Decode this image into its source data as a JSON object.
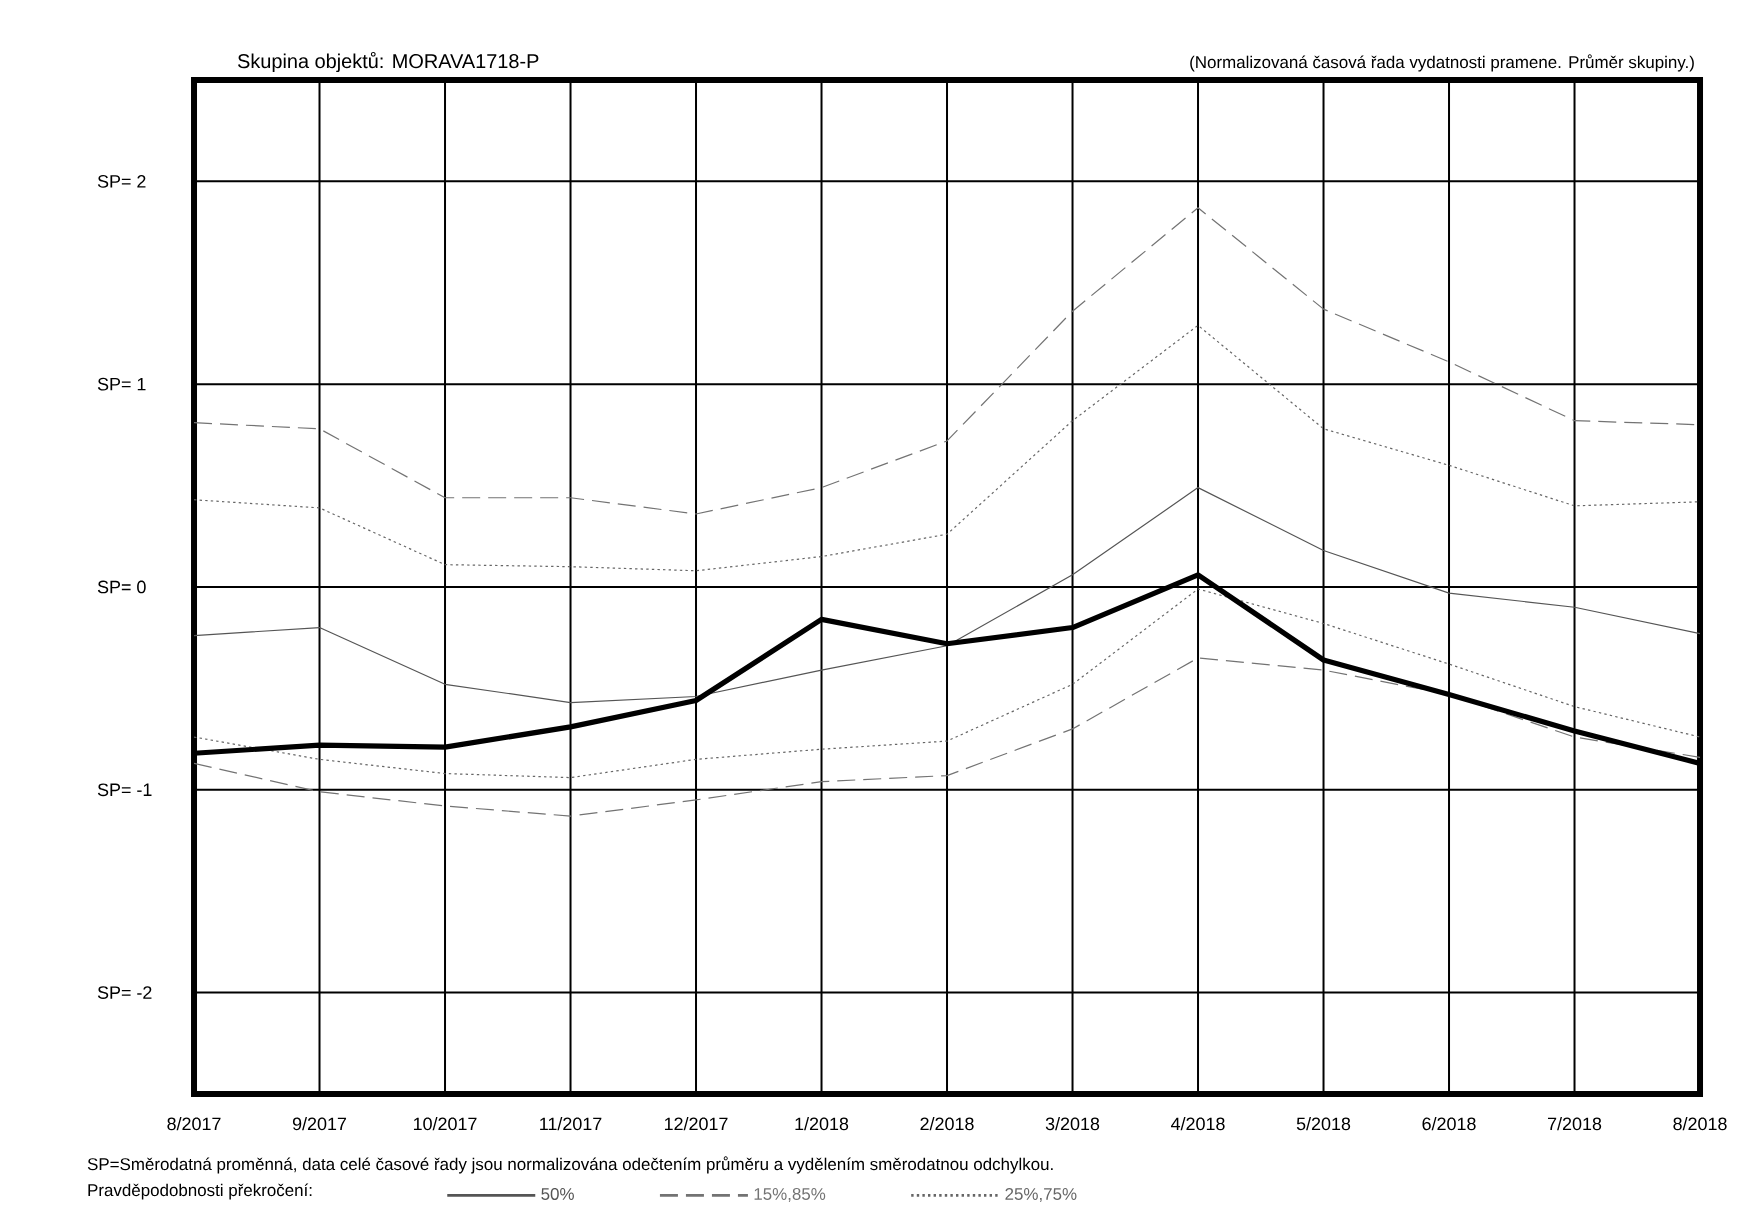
{
  "chart_data": {
    "type": "line",
    "title": "Skupina objektů: MORAVA1718-P",
    "subtitle": "(Normalizovaná časová řada vydatnosti pramene. Průměr skupiny.)",
    "categories": [
      "8/2017",
      "9/2017",
      "10/2017",
      "11/2017",
      "12/2017",
      "1/2018",
      "2/2018",
      "3/2018",
      "4/2018",
      "5/2018",
      "6/2018",
      "7/2018",
      "8/2018"
    ],
    "ylim": [
      -2.5,
      2.5
    ],
    "yticks": [
      {
        "value": -2,
        "label": "SP= -2"
      },
      {
        "value": -1,
        "label": "SP= -1"
      },
      {
        "value": 0,
        "label": "SP= 0"
      },
      {
        "value": 1,
        "label": "SP= 1"
      },
      {
        "value": 2,
        "label": "SP= 2"
      }
    ],
    "grid": true,
    "legend": "bottom",
    "legend_title": "Pravděpodobnosti překročení:",
    "marker": "none",
    "series": [
      {
        "name": "50%",
        "color": "#555555",
        "line_style": "solid",
        "values": [
          -0.24,
          -0.2,
          -0.48,
          -0.57,
          -0.54,
          -0.41,
          -0.29,
          0.06,
          0.49,
          0.18,
          -0.03,
          -0.1,
          -0.23
        ]
      },
      {
        "name": "15%,85%",
        "color": "#737373",
        "line_style": "dashed",
        "values": [
          0.81,
          0.78,
          0.44,
          0.44,
          0.36,
          0.49,
          0.72,
          1.36,
          1.87,
          1.37,
          1.11,
          0.82,
          0.8
        ]
      },
      {
        "color": "#737373",
        "line_style": "dashed",
        "values": [
          -0.87,
          -1.01,
          -1.08,
          -1.13,
          -1.05,
          -0.96,
          -0.93,
          -0.7,
          -0.35,
          -0.41,
          -0.53,
          -0.74,
          -0.84
        ]
      },
      {
        "name": "25%,75%",
        "color": "#666666",
        "line_style": "dotted",
        "values": [
          0.43,
          0.39,
          0.11,
          0.1,
          0.08,
          0.15,
          0.26,
          0.82,
          1.29,
          0.78,
          0.6,
          0.4,
          0.42
        ]
      },
      {
        "color": "#666666",
        "line_style": "dotted",
        "values": [
          -0.74,
          -0.85,
          -0.92,
          -0.94,
          -0.85,
          -0.8,
          -0.76,
          -0.48,
          -0.01,
          -0.18,
          -0.38,
          -0.59,
          -0.74
        ]
      },
      {
        "color": "#000000",
        "line_style": "solid",
        "values": [
          -0.82,
          -0.78,
          -0.79,
          -0.69,
          -0.56,
          -0.16,
          -0.28,
          -0.2,
          0.06,
          -0.36,
          -0.53,
          -0.71,
          -0.87
        ]
      }
    ],
    "annotations": [
      "SP=Směrodatná proměnná, data celé časové řady jsou normalizována odečtením průměru a vydělením směrodatnou odchylkou."
    ]
  }
}
